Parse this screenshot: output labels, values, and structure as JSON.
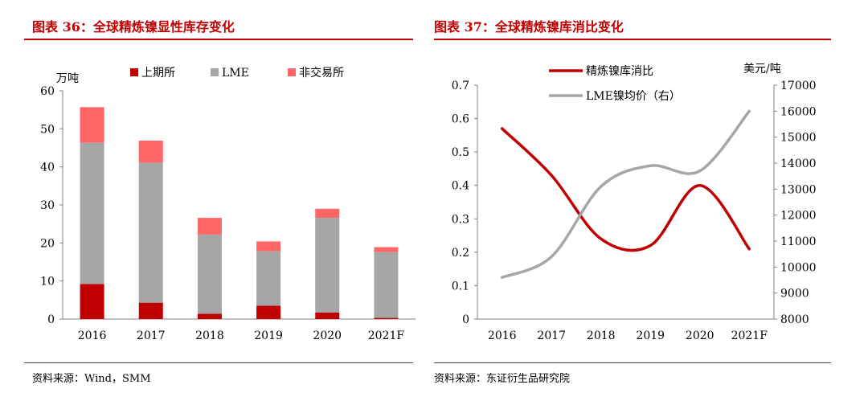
{
  "left": {
    "title": "图表 36：全球精炼镍显性库存变化",
    "source": "资料来源：Wind，SMM"
  },
  "right": {
    "title": "图表 37：全球精炼镍库消比变化",
    "source": "资料来源：东证衍生品研究院"
  },
  "colors": {
    "title_red": "#c00000",
    "shfe": "#c00000",
    "lme": "#a6a6a6",
    "non_exchange": "#ff6666",
    "ratio_line": "#c00000",
    "price_line": "#a6a6a6"
  },
  "chart_data": [
    {
      "type": "bar",
      "stacked": true,
      "categories": [
        "2016",
        "2017",
        "2018",
        "2019",
        "2020",
        "2021F"
      ],
      "ylabel": "万吨",
      "ylim": [
        0,
        60
      ],
      "yticks": [
        0,
        10,
        20,
        30,
        40,
        50,
        60
      ],
      "legend_position": "top",
      "grid": false,
      "series": [
        {
          "name": "上期所",
          "values": [
            9.2,
            4.3,
            1.4,
            3.5,
            1.7,
            0.3
          ]
        },
        {
          "name": "LME",
          "values": [
            37.2,
            36.8,
            20.8,
            14.3,
            24.9,
            17.3
          ]
        },
        {
          "name": "非交易所",
          "values": [
            9.3,
            5.8,
            4.4,
            2.6,
            2.4,
            1.3
          ]
        }
      ]
    },
    {
      "type": "line",
      "categories": [
        "2016",
        "2017",
        "2018",
        "2019",
        "2020",
        "2021F"
      ],
      "y_left_lim": [
        0,
        0.7
      ],
      "y_left_ticks": [
        "0",
        "0.1",
        "0.2",
        "0.3",
        "0.4",
        "0.5",
        "0.6",
        "0.7"
      ],
      "y_right_label": "美元/吨",
      "y_right_lim": [
        8000,
        17000
      ],
      "y_right_ticks": [
        "8000",
        "9000",
        "10000",
        "11000",
        "12000",
        "13000",
        "14000",
        "15000",
        "16000",
        "17000"
      ],
      "legend_position": "top-left",
      "grid": false,
      "series": [
        {
          "name": "精炼镍库消比",
          "axis": "left",
          "values": [
            0.57,
            0.43,
            0.24,
            0.22,
            0.4,
            0.21
          ]
        },
        {
          "name": "LME镍均价（右）",
          "axis": "right",
          "values": [
            9600,
            10400,
            13100,
            13900,
            13700,
            16000
          ]
        }
      ]
    }
  ]
}
